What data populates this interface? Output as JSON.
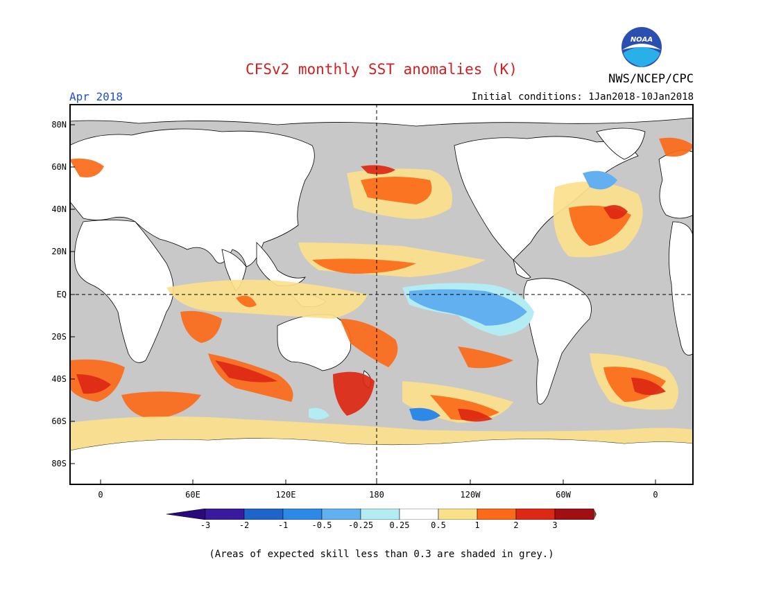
{
  "title": "CFSv2 monthly SST anomalies (K)",
  "agency": "NWS/NCEP/CPC",
  "logo_text": "NOAA",
  "month": "Apr 2018",
  "initial_conditions": "Initial conditions: 1Jan2018-10Jan2018",
  "lat_labels": [
    "80N",
    "60N",
    "40N",
    "20N",
    "EQ",
    "20S",
    "40S",
    "60S",
    "80S"
  ],
  "lon_labels": [
    "0",
    "60E",
    "120E",
    "180",
    "120W",
    "60W",
    "0"
  ],
  "colorbar": {
    "labels": [
      "-3",
      "-2",
      "-1",
      "-0.5",
      "-0.25",
      "0.25",
      "0.5",
      "1",
      "2",
      "3"
    ],
    "colors": [
      "#3a1a9c",
      "#1f64c8",
      "#2d88e6",
      "#62b0f0",
      "#b4ecf4",
      "#ffffff",
      "#fbe08c",
      "#fb6a18",
      "#dc2814",
      "#a01012"
    ],
    "under_color": "#2a0a7a",
    "over_color": "#7a4a3c"
  },
  "colors": {
    "land": "#ffffff",
    "low_skill": "#c8c8c8",
    "title": "#d21e1e",
    "month": "#1f4fcf"
  },
  "footnote": "(Areas of expected skill less than 0.3 are shaded in grey.)"
}
